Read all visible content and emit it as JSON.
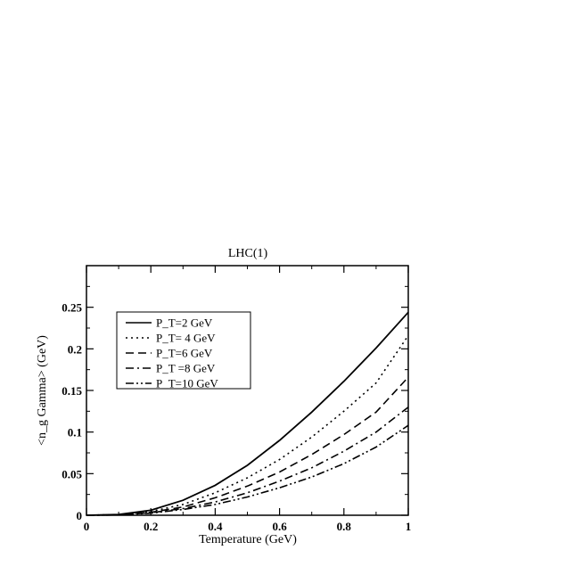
{
  "chart_data": {
    "type": "line",
    "title": "LHC(1)",
    "xlabel": "Temperature (GeV)",
    "ylabel": "<n_g Gamma> (GeV)",
    "xlim": [
      0,
      1
    ],
    "ylim": [
      0,
      0.3
    ],
    "xticks": [
      "0",
      "0.2",
      "0.4",
      "0.6",
      "0.8",
      "1"
    ],
    "yticks": [
      "0",
      "0.05",
      "0.1",
      "0.15",
      "0.2",
      "0.25"
    ],
    "grid": false,
    "legend_position": "top-left",
    "x": [
      0,
      0.1,
      0.2,
      0.3,
      0.4,
      0.5,
      0.6,
      0.7,
      0.8,
      0.9,
      1.0
    ],
    "series": [
      {
        "name": "P_T=2 GeV",
        "style": "solid",
        "values": [
          0,
          0.001,
          0.006,
          0.018,
          0.036,
          0.06,
          0.09,
          0.124,
          0.161,
          0.201,
          0.244
        ]
      },
      {
        "name": "P_T= 4 GeV",
        "style": "dotted",
        "values": [
          0,
          0.0007,
          0.0045,
          0.013,
          0.027,
          0.045,
          0.067,
          0.094,
          0.125,
          0.159,
          0.216
        ]
      },
      {
        "name": "P_T=6 GeV",
        "style": "dashed",
        "values": [
          0,
          0.0005,
          0.0035,
          0.01,
          0.021,
          0.035,
          0.052,
          0.073,
          0.097,
          0.124,
          0.166
        ]
      },
      {
        "name": "P_T =8 GeV",
        "style": "dashdot",
        "values": [
          0,
          0.0004,
          0.003,
          0.008,
          0.016,
          0.027,
          0.041,
          0.057,
          0.077,
          0.1,
          0.13
        ]
      },
      {
        "name": "P_T=10 GeV",
        "style": "dashdotdot",
        "values": [
          0,
          0.0003,
          0.0025,
          0.007,
          0.013,
          0.022,
          0.033,
          0.046,
          0.062,
          0.082,
          0.108
        ]
      }
    ]
  }
}
